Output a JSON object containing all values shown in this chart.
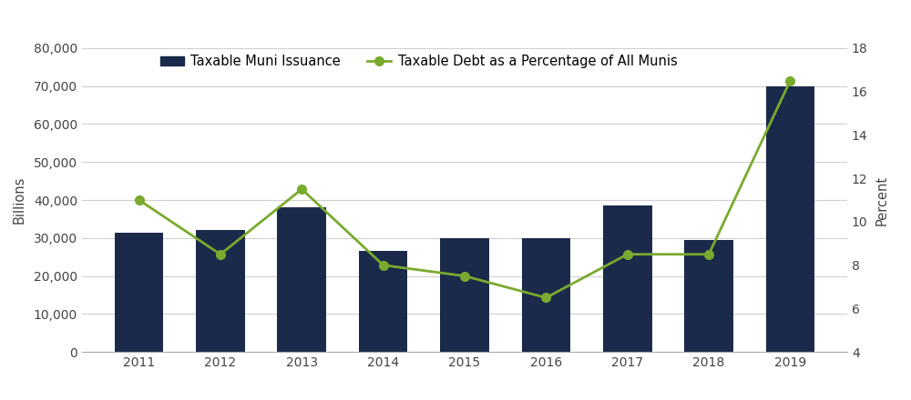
{
  "years": [
    2011,
    2012,
    2013,
    2014,
    2015,
    2016,
    2017,
    2018,
    2019
  ],
  "bar_values": [
    31500,
    32000,
    38000,
    26500,
    30000,
    30000,
    38500,
    29500,
    70000
  ],
  "line_values": [
    11.0,
    8.5,
    11.5,
    8.0,
    7.5,
    6.5,
    8.5,
    8.5,
    16.5
  ],
  "bar_color": "#1b2a4a",
  "line_color": "#7aaa2e",
  "bar_label": "Taxable Muni Issuance",
  "line_label": "Taxable Debt as a Percentage of All Munis",
  "ylabel_left": "Billions",
  "ylabel_right": "Percent",
  "ylim_left": [
    0,
    80000
  ],
  "ylim_right": [
    4,
    18
  ],
  "yticks_left": [
    0,
    10000,
    20000,
    30000,
    40000,
    50000,
    60000,
    70000,
    80000
  ],
  "yticks_right": [
    4,
    6,
    8,
    10,
    12,
    14,
    16,
    18
  ],
  "background_color": "#ffffff",
  "grid_color": "#d0d0d0",
  "legend_fontsize": 10.5,
  "axis_label_fontsize": 10.5,
  "tick_fontsize": 10,
  "bar_width": 0.6,
  "xlim": [
    2010.3,
    2019.7
  ]
}
